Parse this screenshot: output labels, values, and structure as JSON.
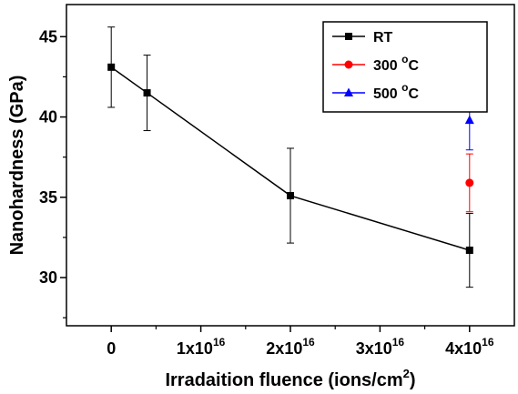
{
  "chart_data": {
    "type": "scatter",
    "xlabel": "Irradaition fluence (ions/cm",
    "xlabel_sup": "2",
    "xlabel_end": ")",
    "ylabel": "Nanohardness (GPa)",
    "xlim": [
      -5000000000000000.0,
      4.5e+16
    ],
    "ylim": [
      27,
      47
    ],
    "x_ticks": [
      {
        "value": 0,
        "label": "0",
        "sup": ""
      },
      {
        "value": 1e+16,
        "label": "1x10",
        "sup": "16"
      },
      {
        "value": 2e+16,
        "label": "2x10",
        "sup": "16"
      },
      {
        "value": 3e+16,
        "label": "3x10",
        "sup": "16"
      },
      {
        "value": 4e+16,
        "label": "4x10",
        "sup": "16"
      }
    ],
    "y_ticks": [
      {
        "value": 30,
        "label": "30"
      },
      {
        "value": 35,
        "label": "35"
      },
      {
        "value": 40,
        "label": "40"
      },
      {
        "value": 45,
        "label": "45"
      }
    ],
    "legend_position": "top-right",
    "series": [
      {
        "name": "RT",
        "suffix": "",
        "marker": "square",
        "color": "#000000",
        "connected": true,
        "points": [
          {
            "x": 0,
            "y": 43.1,
            "err": 2.5
          },
          {
            "x": 4000000000000000.0,
            "y": 41.5,
            "err": 2.35
          },
          {
            "x": 2e+16,
            "y": 35.1,
            "err": 2.95
          },
          {
            "x": 4e+16,
            "y": 31.7,
            "err": 2.3
          }
        ]
      },
      {
        "name": "300 ",
        "suffix": "C",
        "sup": "o",
        "marker": "circle",
        "color": "#ff0000",
        "connected": false,
        "points": [
          {
            "x": 4e+16,
            "y": 35.9,
            "err": 1.8
          }
        ]
      },
      {
        "name": "500 ",
        "suffix": "C",
        "sup": "o",
        "marker": "triangle",
        "color": "#0000ff",
        "connected": false,
        "points": [
          {
            "x": 4e+16,
            "y": 39.8,
            "err": 1.85
          }
        ]
      }
    ]
  }
}
